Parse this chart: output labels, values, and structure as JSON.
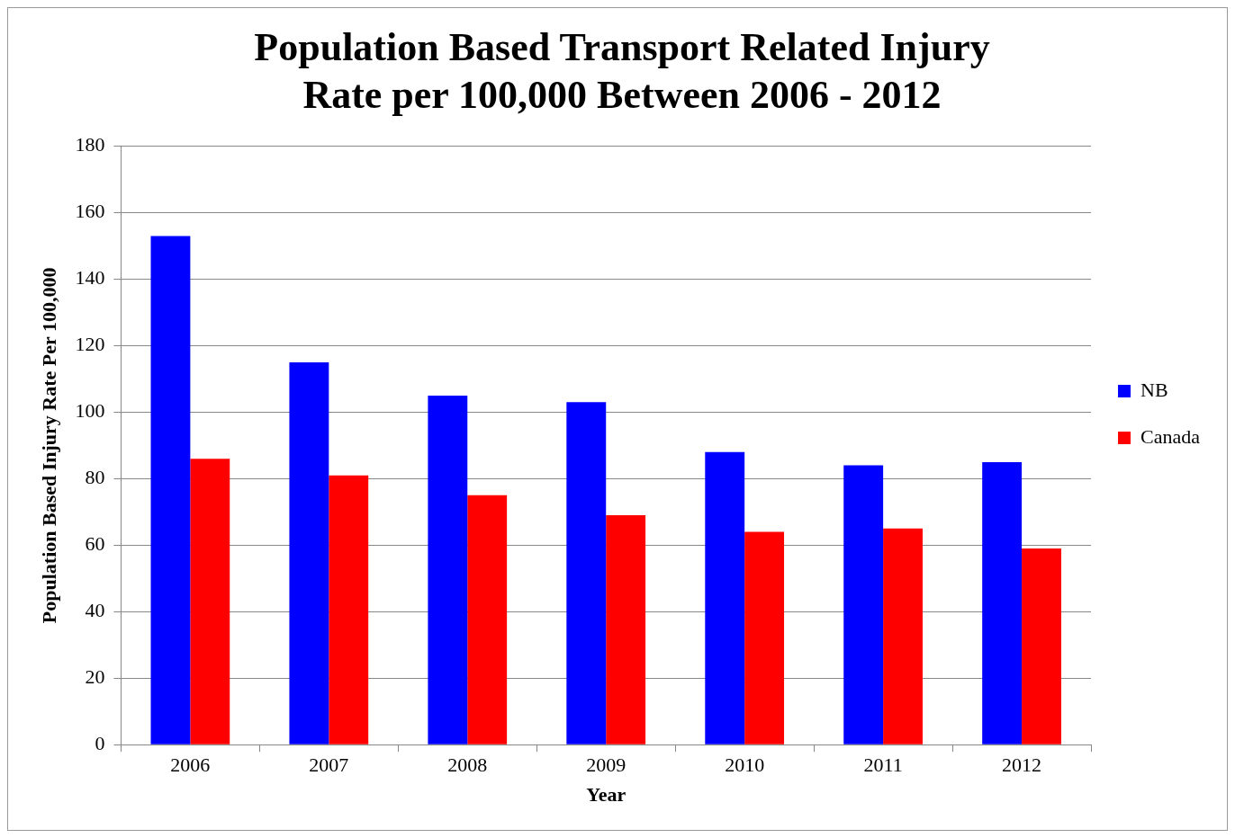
{
  "chart_data": {
    "type": "bar",
    "title": "Population Based Transport Related Injury Rate per 100,000 Between 2006 - 2012",
    "xlabel": "Year",
    "ylabel": "Population Based Injury Rate Per 100,000",
    "categories": [
      "2006",
      "2007",
      "2008",
      "2009",
      "2010",
      "2011",
      "2012"
    ],
    "series": [
      {
        "name": "NB",
        "color": "#0000ff",
        "values": [
          153,
          115,
          105,
          103,
          88,
          84,
          85
        ]
      },
      {
        "name": "Canada",
        "color": "#ff0000",
        "values": [
          86,
          81,
          75,
          69,
          64,
          65,
          59
        ]
      }
    ],
    "ylim": [
      0,
      180
    ],
    "yticks": [
      0,
      20,
      40,
      60,
      80,
      100,
      120,
      140,
      160,
      180
    ],
    "grid": "y",
    "legend": "right"
  }
}
